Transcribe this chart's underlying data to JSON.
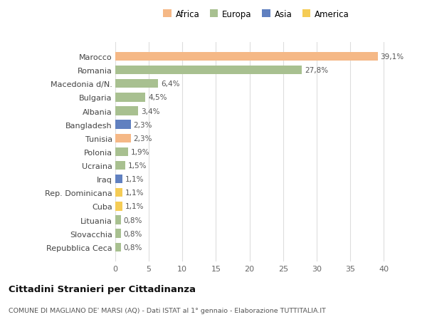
{
  "categories": [
    "Marocco",
    "Romania",
    "Macedonia d/N.",
    "Bulgaria",
    "Albania",
    "Bangladesh",
    "Tunisia",
    "Polonia",
    "Ucraina",
    "Iraq",
    "Rep. Dominicana",
    "Cuba",
    "Lituania",
    "Slovacchia",
    "Repubblica Ceca"
  ],
  "values": [
    39.1,
    27.8,
    6.4,
    4.5,
    3.4,
    2.3,
    2.3,
    1.9,
    1.5,
    1.1,
    1.1,
    1.1,
    0.8,
    0.8,
    0.8
  ],
  "labels": [
    "39,1%",
    "27,8%",
    "6,4%",
    "4,5%",
    "3,4%",
    "2,3%",
    "2,3%",
    "1,9%",
    "1,5%",
    "1,1%",
    "1,1%",
    "1,1%",
    "0,8%",
    "0,8%",
    "0,8%"
  ],
  "continents": [
    "Africa",
    "Europa",
    "Europa",
    "Europa",
    "Europa",
    "Asia",
    "Africa",
    "Europa",
    "Europa",
    "Asia",
    "America",
    "America",
    "Europa",
    "Europa",
    "Europa"
  ],
  "colors": {
    "Africa": "#F5B886",
    "Europa": "#A8C090",
    "Asia": "#6080C0",
    "America": "#F5CC55"
  },
  "legend_order": [
    "Africa",
    "Europa",
    "Asia",
    "America"
  ],
  "title": "Cittadini Stranieri per Cittadinanza",
  "subtitle": "COMUNE DI MAGLIANO DE' MARSI (AQ) - Dati ISTAT al 1° gennaio - Elaborazione TUTTITALIA.IT",
  "xlim": [
    0,
    42
  ],
  "xticks": [
    0,
    5,
    10,
    15,
    20,
    25,
    30,
    35,
    40
  ],
  "background_color": "#ffffff",
  "grid_color": "#dddddd"
}
